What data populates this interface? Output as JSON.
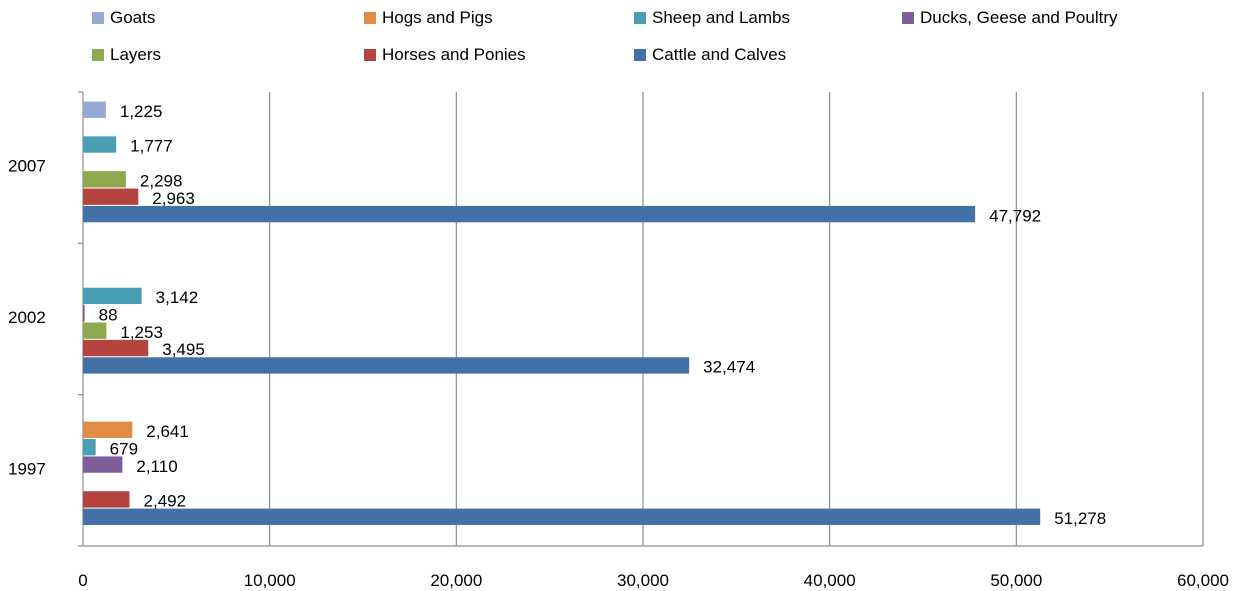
{
  "chart_data": {
    "type": "bar",
    "orientation": "horizontal",
    "categories": [
      "2007",
      "2002",
      "1997"
    ],
    "xlim": [
      0,
      60000
    ],
    "x_ticks": [
      "0",
      "10,000",
      "20,000",
      "30,000",
      "40,000",
      "50,000",
      "60,000"
    ],
    "grid": "vertical",
    "legend_position": "top",
    "series": [
      {
        "name": "Goats",
        "color": "#95A9D3",
        "values": [
          1225,
          null,
          null
        ],
        "labels": [
          "1,225",
          null,
          null
        ]
      },
      {
        "name": "Hogs and Pigs",
        "color": "#E08C47",
        "values": [
          null,
          null,
          2641
        ],
        "labels": [
          null,
          null,
          "2,641"
        ]
      },
      {
        "name": "Sheep and Lambs",
        "color": "#4A9FB4",
        "values": [
          1777,
          3142,
          679
        ],
        "labels": [
          "1,777",
          "3,142",
          "679"
        ]
      },
      {
        "name": "Ducks, Geese and Poultry",
        "color": "#7E5F9B",
        "values": [
          null,
          88,
          2110
        ],
        "labels": [
          null,
          "88",
          "2,110"
        ]
      },
      {
        "name": "Layers",
        "color": "#8FAA4D",
        "values": [
          2298,
          1253,
          null
        ],
        "labels": [
          "2,298",
          "1,253",
          null
        ]
      },
      {
        "name": "Horses and Ponies",
        "color": "#B5433F",
        "values": [
          2963,
          3495,
          2492
        ],
        "labels": [
          "2,963",
          "3,495",
          "2,492"
        ]
      },
      {
        "name": "Cattle and Calves",
        "color": "#4470A8",
        "values": [
          47792,
          32474,
          51278
        ],
        "labels": [
          "47,792",
          "32,474",
          "51,278"
        ]
      }
    ]
  }
}
